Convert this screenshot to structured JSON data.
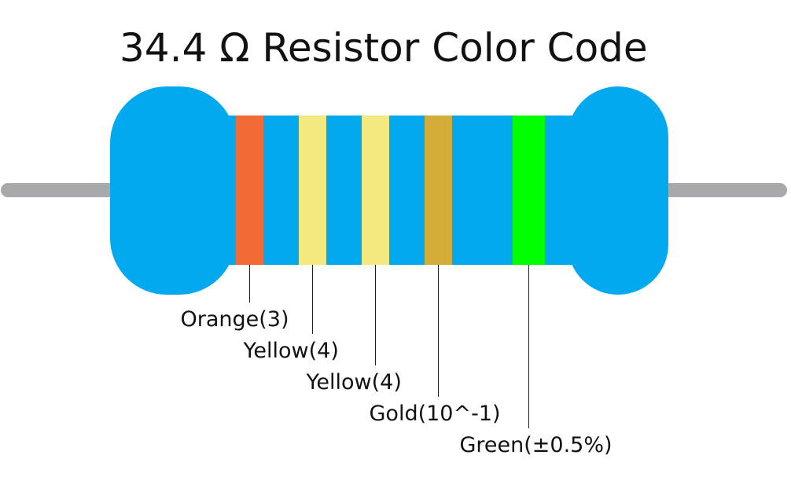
{
  "title": "34.4 Ω Resistor Color Code",
  "bands": [
    {
      "label": "Orange(3)",
      "color": "#f26b36"
    },
    {
      "label": "Yellow(4)",
      "color": "#f3e97f"
    },
    {
      "label": "Yellow(4)",
      "color": "#f3e97f"
    },
    {
      "label": "Gold(10^-1)",
      "color": "#d4ac3a"
    },
    {
      "label": "Green(±0.5%)",
      "color": "#00ff00"
    }
  ]
}
